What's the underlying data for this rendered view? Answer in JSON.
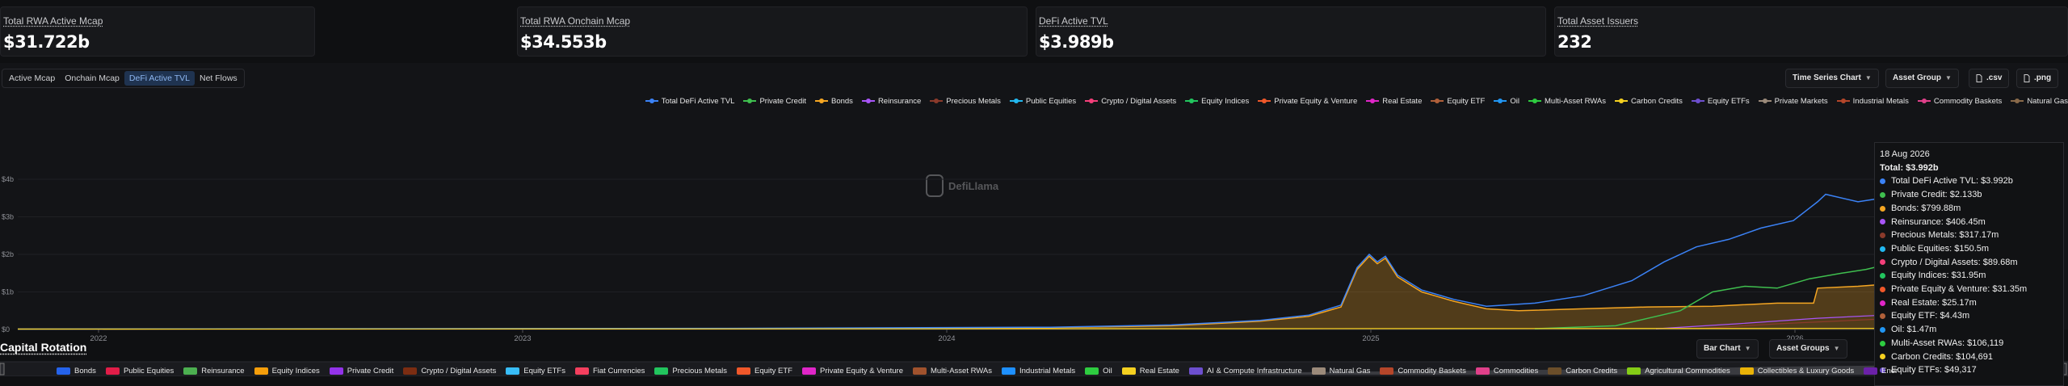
{
  "stats": [
    {
      "label": "Total RWA Active Mcap",
      "value": "$31.722b"
    },
    {
      "label": "Total RWA Onchain Mcap",
      "value": "$34.553b"
    },
    {
      "label": "DeFi Active TVL",
      "value": "$3.989b"
    },
    {
      "label": "Total Asset Issuers",
      "value": "232"
    }
  ],
  "tabs": [
    "Active Mcap",
    "Onchain Mcap",
    "DeFi Active TVL",
    "Net Flows"
  ],
  "active_tab": "DeFi Active TVL",
  "toolbar": {
    "chart_type": "Time Series Chart",
    "grouping": "Asset Group",
    "csv": ".csv",
    "png": ".png"
  },
  "watermark": "DefiLlama",
  "chart_data": {
    "type": "area",
    "yaxis_ticks": [
      "$0",
      "$1b",
      "$2b",
      "$3b",
      "$4b"
    ],
    "xaxis_ticks": [
      "2022",
      "2023",
      "2024",
      "2025",
      "2026"
    ],
    "legend_position": "top-right",
    "series": [
      {
        "name": "Total DeFi Active TVL",
        "color": "#3b82f6"
      },
      {
        "name": "Private Credit",
        "color": "#3fbf4f"
      },
      {
        "name": "Bonds",
        "color": "#f5a623"
      },
      {
        "name": "Reinsurance",
        "color": "#a855f7"
      },
      {
        "name": "Precious Metals",
        "color": "#8b3a2b"
      },
      {
        "name": "Public Equities",
        "color": "#22b8f0"
      },
      {
        "name": "Crypto / Digital Assets",
        "color": "#f43f7a"
      },
      {
        "name": "Equity Indices",
        "color": "#22c55e"
      },
      {
        "name": "Private Equity & Venture",
        "color": "#f0582a"
      },
      {
        "name": "Real Estate",
        "color": "#e026c8"
      },
      {
        "name": "Equity ETF",
        "color": "#b0603a"
      },
      {
        "name": "Oil",
        "color": "#2196f3"
      },
      {
        "name": "Multi-Asset RWAs",
        "color": "#2ecc40"
      },
      {
        "name": "Carbon Credits",
        "color": "#f5d020"
      },
      {
        "name": "Equity ETFs",
        "color": "#6d4fcf"
      },
      {
        "name": "Private Markets",
        "color": "#9b8a7a"
      },
      {
        "name": "Industrial Metals",
        "color": "#b5462a"
      },
      {
        "name": "Commodity Baskets",
        "color": "#e0408a"
      },
      {
        "name": "Natural Gas",
        "color": "#8a6a4a"
      }
    ]
  },
  "tooltip": {
    "date": "18 Aug 2026",
    "total": "Total: $3.992b",
    "rows": [
      {
        "label": "Total DeFi Active TVL: $3.992b",
        "color": "#3b82f6"
      },
      {
        "label": "Private Credit: $2.133b",
        "color": "#3fbf4f"
      },
      {
        "label": "Bonds: $799.88m",
        "color": "#f5a623"
      },
      {
        "label": "Reinsurance: $406.45m",
        "color": "#a855f7"
      },
      {
        "label": "Precious Metals: $317.17m",
        "color": "#8b3a2b"
      },
      {
        "label": "Public Equities: $150.5m",
        "color": "#22b8f0"
      },
      {
        "label": "Crypto / Digital Assets: $89.68m",
        "color": "#f43f7a"
      },
      {
        "label": "Equity Indices: $31.95m",
        "color": "#22c55e"
      },
      {
        "label": "Private Equity & Venture: $31.35m",
        "color": "#f0582a"
      },
      {
        "label": "Real Estate: $25.17m",
        "color": "#e026c8"
      },
      {
        "label": "Equity ETF: $4.43m",
        "color": "#b0603a"
      },
      {
        "label": "Oil: $1.47m",
        "color": "#2196f3"
      },
      {
        "label": "Multi-Asset RWAs: $106,119",
        "color": "#2ecc40"
      },
      {
        "label": "Carbon Credits: $104,691",
        "color": "#f5d020"
      },
      {
        "label": "Equity ETFs: $49,317",
        "color": "#6d4fcf"
      }
    ]
  },
  "capital_rotation": {
    "title": "Capital Rotation",
    "chart_type": "Bar Chart",
    "grouping": "Asset Groups",
    "legend": [
      {
        "name": "Bonds",
        "color": "#2563eb"
      },
      {
        "name": "Public Equities",
        "color": "#e11d48"
      },
      {
        "name": "Reinsurance",
        "color": "#4caf50"
      },
      {
        "name": "Equity Indices",
        "color": "#f59e0b"
      },
      {
        "name": "Private Credit",
        "color": "#9333ea"
      },
      {
        "name": "Crypto / Digital Assets",
        "color": "#7c2d12"
      },
      {
        "name": "Equity ETFs",
        "color": "#38bdf8"
      },
      {
        "name": "Fiat Currencies",
        "color": "#f43f5e"
      },
      {
        "name": "Precious Metals",
        "color": "#22c55e"
      },
      {
        "name": "Equity ETF",
        "color": "#f0582a"
      },
      {
        "name": "Private Equity & Venture",
        "color": "#e026c8"
      },
      {
        "name": "Multi-Asset RWAs",
        "color": "#a0522d"
      },
      {
        "name": "Industrial Metals",
        "color": "#1e90ff"
      },
      {
        "name": "Oil",
        "color": "#2ecc40"
      },
      {
        "name": "Real Estate",
        "color": "#f5d020"
      },
      {
        "name": "AI & Compute Infrastructure",
        "color": "#6d4fcf"
      },
      {
        "name": "Natural Gas",
        "color": "#9b8a7a"
      },
      {
        "name": "Commodity Baskets",
        "color": "#b5462a"
      },
      {
        "name": "Commodities",
        "color": "#e0408a"
      },
      {
        "name": "Carbon Credits",
        "color": "#6b4e2a"
      },
      {
        "name": "Agricultural Commodities",
        "color": "#84cc16"
      },
      {
        "name": "Collectibles & Luxury Goods",
        "color": "#eab308"
      },
      {
        "name": "Ener",
        "color": "#6b21a8"
      }
    ]
  }
}
